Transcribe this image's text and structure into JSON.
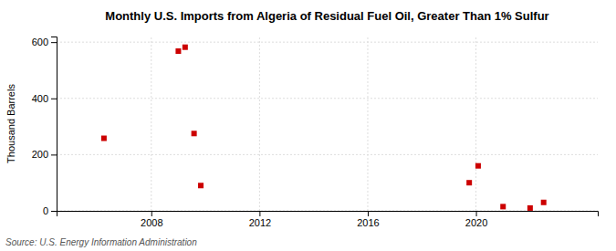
{
  "chart_data": {
    "type": "scatter",
    "title": "Monthly U.S. Imports from Algeria of Residual Fuel Oil, Greater Than 1% Sulfur",
    "ylabel": "Thousand Barrels",
    "annotations": [
      "Source: U.S. Energy Information Administration"
    ],
    "x": [
      2006.25,
      2009.0,
      2009.25,
      2009.58,
      2009.83,
      2019.75,
      2020.08,
      2021.0,
      2022.0,
      2022.5
    ],
    "values": [
      258,
      568,
      582,
      275,
      90,
      100,
      160,
      15,
      10,
      30
    ],
    "color": "#cc0000",
    "marker": "square",
    "xlim": [
      2004.5,
      2024.5
    ],
    "ylim": [
      0,
      620
    ],
    "xticks": [
      2008,
      2012,
      2016,
      2020
    ],
    "yticks": [
      0,
      200,
      400,
      600
    ],
    "grid": true
  }
}
